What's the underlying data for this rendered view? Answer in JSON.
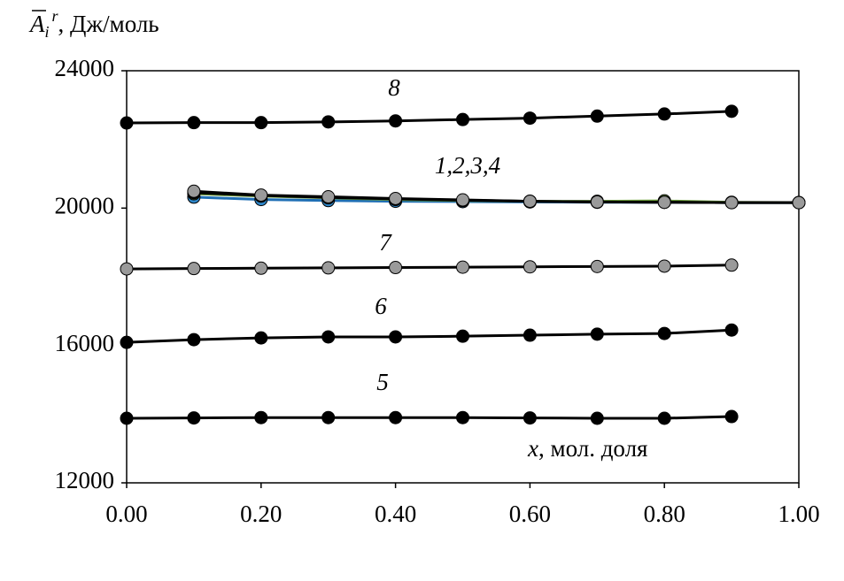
{
  "chart_data": {
    "type": "line",
    "y_label": {
      "symbol": "A",
      "subscript": "i",
      "superscript": "r",
      "unit": ", Дж/моль"
    },
    "x_label": {
      "symbol": "x",
      "unit": ", мол. доля"
    },
    "annotations": [
      "8",
      "1,2,3,4",
      "7",
      "6",
      "5"
    ],
    "xlim": [
      0,
      1
    ],
    "ylim": [
      12000,
      24000
    ],
    "xticks": [
      {
        "value": 0,
        "label": "0.00"
      },
      {
        "value": 0.2,
        "label": "0.20"
      },
      {
        "value": 0.4,
        "label": "0.40"
      },
      {
        "value": 0.6,
        "label": "0.60"
      },
      {
        "value": 0.8,
        "label": "0.80"
      },
      {
        "value": 1,
        "label": "1.00"
      }
    ],
    "yticks": [
      12000,
      16000,
      20000,
      24000
    ],
    "series": [
      {
        "color": "#000000",
        "marker_color": "#000000",
        "x": [
          0,
          0.1,
          0.2,
          0.3,
          0.4,
          0.5,
          0.6,
          0.7,
          0.8,
          0.9
        ],
        "values": [
          22480,
          22490,
          22490,
          22510,
          22540,
          22580,
          22620,
          22680,
          22740,
          22820
        ]
      },
      {
        "color": "#1f6fb5",
        "marker_color": "#2e86c8",
        "x": [
          0.1,
          0.2,
          0.3,
          0.4,
          0.5,
          0.6,
          0.7,
          0.8,
          0.9,
          1
        ],
        "values": [
          20320,
          20250,
          20220,
          20200,
          20190,
          20180,
          20170,
          20170,
          20160,
          20160
        ]
      },
      {
        "color": "#6a9a3a",
        "marker_color": "#7fb04a",
        "x": [
          0.1,
          0.2,
          0.3,
          0.4,
          0.5,
          0.6,
          0.7,
          0.8,
          0.9,
          1
        ],
        "values": [
          20420,
          20350,
          20300,
          20250,
          20220,
          20200,
          20200,
          20210,
          20170,
          20160
        ]
      },
      {
        "color": "#000000",
        "marker_color": "#000000",
        "x": [
          0.1,
          0.2,
          0.3,
          0.4,
          0.5,
          0.6,
          0.7,
          0.8,
          0.9,
          1
        ],
        "values": [
          20450,
          20370,
          20310,
          20270,
          20230,
          20200,
          20180,
          20170,
          20160,
          20160
        ]
      },
      {
        "color": "#000000",
        "marker_color": "#9a9a9a",
        "x": [
          0.1,
          0.2,
          0.3,
          0.4,
          0.5,
          0.6,
          0.7,
          0.8,
          0.9,
          1
        ],
        "values": [
          20490,
          20380,
          20330,
          20280,
          20240,
          20200,
          20180,
          20170,
          20160,
          20160
        ]
      },
      {
        "color": "#000000",
        "marker_color": "#9a9a9a",
        "x": [
          0,
          0.1,
          0.2,
          0.3,
          0.4,
          0.5,
          0.6,
          0.7,
          0.8,
          0.9
        ],
        "values": [
          18230,
          18240,
          18250,
          18260,
          18270,
          18280,
          18290,
          18300,
          18310,
          18340
        ]
      },
      {
        "color": "#000000",
        "marker_color": "#000000",
        "x": [
          0,
          0.1,
          0.2,
          0.3,
          0.4,
          0.5,
          0.6,
          0.7,
          0.8,
          0.9
        ],
        "values": [
          16090,
          16170,
          16220,
          16250,
          16250,
          16270,
          16300,
          16330,
          16350,
          16450
        ]
      },
      {
        "color": "#000000",
        "marker_color": "#000000",
        "x": [
          0,
          0.1,
          0.2,
          0.3,
          0.4,
          0.5,
          0.6,
          0.7,
          0.8,
          0.9
        ],
        "values": [
          13880,
          13890,
          13900,
          13900,
          13900,
          13900,
          13890,
          13880,
          13880,
          13930
        ]
      }
    ]
  }
}
